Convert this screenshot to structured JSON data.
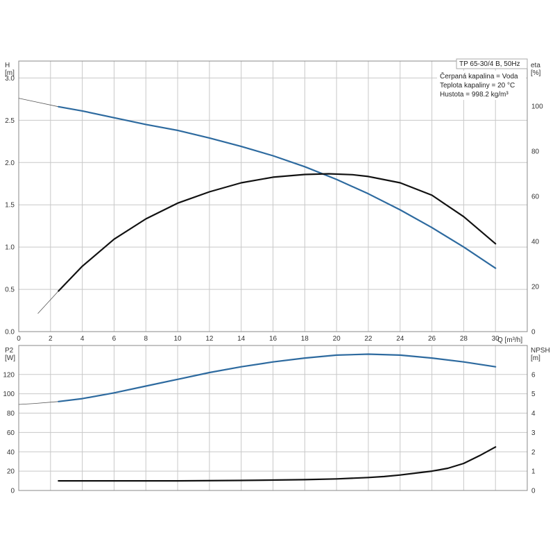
{
  "colors": {
    "blue": "#2d6a9f",
    "black": "#111111",
    "grid": "#c8c8c8"
  },
  "chart_data": [
    {
      "type": "line",
      "name": "top",
      "x_unit": "Q [m³/h]",
      "left_label": "H",
      "left_unit": "[m]",
      "right_label": "eta",
      "right_unit": "[%]",
      "xlim": [
        0,
        32
      ],
      "xticks": [
        0,
        2,
        4,
        6,
        8,
        10,
        12,
        14,
        16,
        18,
        20,
        22,
        24,
        26,
        28,
        30
      ],
      "ylim_left": [
        0,
        3.2
      ],
      "yticks_left": [
        "0.0",
        "0.5",
        "1.0",
        "1.5",
        "2.0",
        "2.5",
        "3.0"
      ],
      "ylim_right": [
        0,
        120
      ],
      "yticks_right": [
        "0",
        "20",
        "40",
        "60",
        "80",
        "100"
      ],
      "grid": true,
      "info_lines": [
        "TP 65-30/4 B, 50Hz",
        "Čerpaná kapalina = Voda",
        "Teplota kapaliny = 20 °C",
        "Hustota = 998.2 kg/m³"
      ],
      "series": [
        {
          "axis": "left",
          "color": "#2d6a9f",
          "thin_until": 2.5,
          "x": [
            0,
            1,
            2.5,
            4,
            6,
            8,
            10,
            12,
            14,
            16,
            18,
            20,
            22,
            24,
            26,
            28,
            30
          ],
          "y": [
            2.76,
            2.72,
            2.66,
            2.61,
            2.53,
            2.45,
            2.38,
            2.29,
            2.19,
            2.08,
            1.95,
            1.8,
            1.63,
            1.44,
            1.23,
            1.0,
            0.75
          ]
        },
        {
          "axis": "right",
          "color": "#111111",
          "thin_until": 2.5,
          "x": [
            1.2,
            2.5,
            4,
            6,
            8,
            10,
            12,
            14,
            16,
            18,
            19.5,
            21,
            22,
            24,
            26,
            28,
            29,
            30
          ],
          "y": [
            8,
            18,
            29,
            41,
            50,
            57,
            62,
            66,
            68.5,
            69.7,
            70,
            69.6,
            68.8,
            66,
            60.5,
            51,
            45,
            39
          ]
        }
      ]
    },
    {
      "type": "line",
      "name": "bottom",
      "left_label": "P2",
      "left_unit": "[W]",
      "right_label": "NPSH",
      "right_unit": "[m]",
      "xlim": [
        0,
        32
      ],
      "ylim_left": [
        0,
        150
      ],
      "yticks_left": [
        "0",
        "20",
        "40",
        "60",
        "80",
        "100",
        "120"
      ],
      "ylim_right": [
        0,
        7.5
      ],
      "yticks_right": [
        "0",
        "1",
        "2",
        "3",
        "4",
        "5",
        "6"
      ],
      "grid": true,
      "series": [
        {
          "axis": "left",
          "color": "#2d6a9f",
          "thin_until": 2.5,
          "x": [
            0,
            1,
            2.5,
            4,
            6,
            8,
            10,
            12,
            14,
            16,
            18,
            20,
            22,
            24,
            26,
            28,
            30
          ],
          "y": [
            89,
            90,
            92,
            95,
            101,
            108,
            115,
            122,
            128,
            133,
            137,
            140,
            141,
            140,
            137,
            133,
            128
          ]
        },
        {
          "axis": "right",
          "color": "#111111",
          "thin_until": 0,
          "x": [
            2.5,
            6,
            10,
            14,
            18,
            20,
            22,
            23,
            24,
            25,
            26,
            27,
            28,
            29,
            30
          ],
          "y": [
            0.5,
            0.5,
            0.5,
            0.52,
            0.56,
            0.6,
            0.67,
            0.72,
            0.8,
            0.9,
            1.0,
            1.15,
            1.4,
            1.8,
            2.25
          ]
        }
      ]
    }
  ]
}
